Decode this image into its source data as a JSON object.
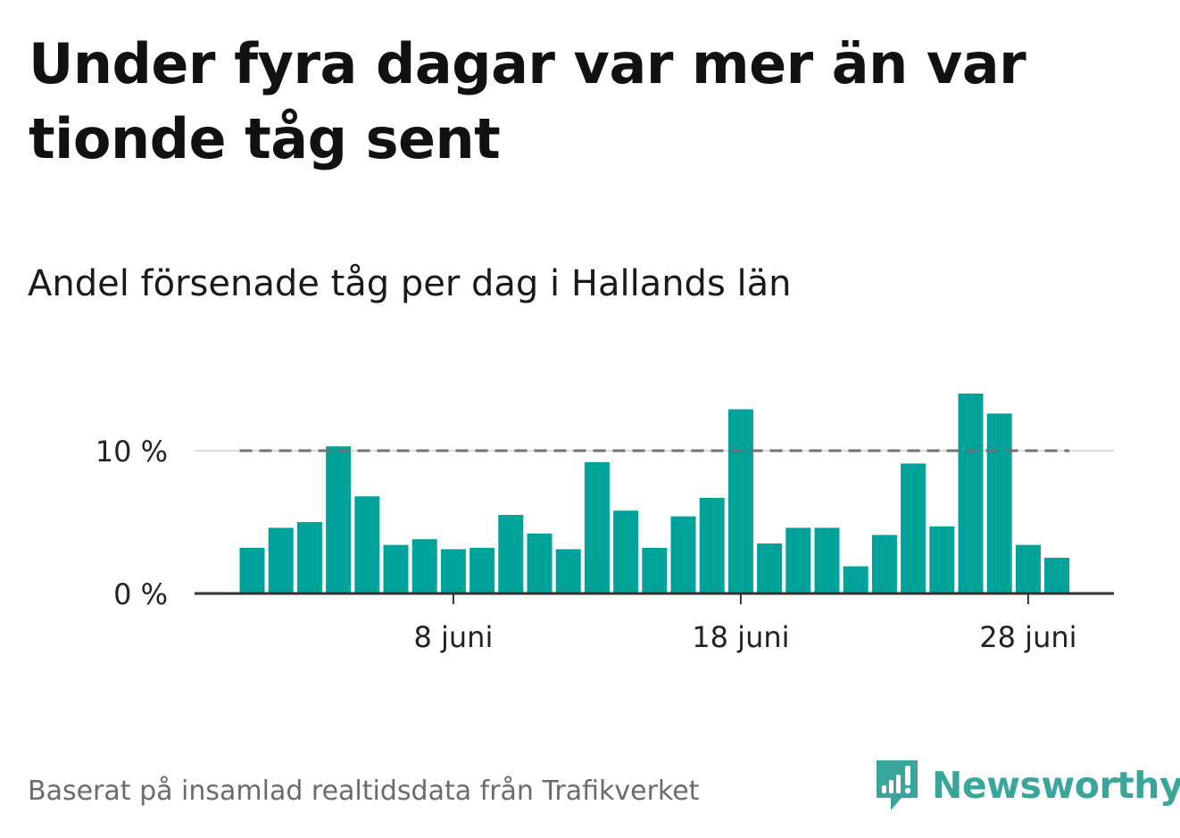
{
  "headline": "Under fyra dagar var mer än var tionde tåg sent",
  "subtitle": "Andel försenade tåg per dag i Hallands län",
  "footer": "Baserat på insamlad realtidsdata från Trafikverket",
  "logo": {
    "text": "Newsworthy",
    "icon": "bar-chart-speech-bubble-icon"
  },
  "colors": {
    "bars": "#00a39a",
    "reference_line": "#707078",
    "grid": "#dddddd",
    "axis": "#333333",
    "logo": "#3aa59a"
  },
  "chart_data": {
    "type": "bar",
    "x": [
      "2019-06-01",
      "2019-06-02",
      "2019-06-03",
      "2019-06-04",
      "2019-06-05",
      "2019-06-06",
      "2019-06-07",
      "2019-06-08",
      "2019-06-09",
      "2019-06-10",
      "2019-06-11",
      "2019-06-12",
      "2019-06-13",
      "2019-06-14",
      "2019-06-15",
      "2019-06-16",
      "2019-06-17",
      "2019-06-18",
      "2019-06-19",
      "2019-06-20",
      "2019-06-21",
      "2019-06-22",
      "2019-06-23",
      "2019-06-24",
      "2019-06-25",
      "2019-06-26",
      "2019-06-27",
      "2019-06-28",
      "2019-06-29"
    ],
    "values": [
      3.2,
      4.6,
      5.0,
      10.3,
      6.8,
      3.4,
      3.8,
      3.1,
      3.2,
      5.5,
      4.2,
      3.1,
      9.2,
      5.8,
      3.2,
      5.4,
      6.7,
      12.9,
      3.5,
      4.6,
      4.6,
      1.9,
      4.1,
      9.1,
      4.7,
      14.0,
      12.6,
      3.4,
      2.5
    ],
    "unit": "%",
    "ylim": [
      0,
      14.5
    ],
    "y_ticks": [
      {
        "value": 0,
        "label": "0 %"
      },
      {
        "value": 10,
        "label": "10 %"
      }
    ],
    "x_ticks": [
      {
        "x": "2019-06-08",
        "label": "8 juni"
      },
      {
        "x": "2019-06-18",
        "label": "18 juni"
      },
      {
        "x": "2019-06-28",
        "label": "28 juni"
      }
    ],
    "reference_line": {
      "value": 10,
      "style": "dashed"
    },
    "grid": true,
    "legend": false
  }
}
